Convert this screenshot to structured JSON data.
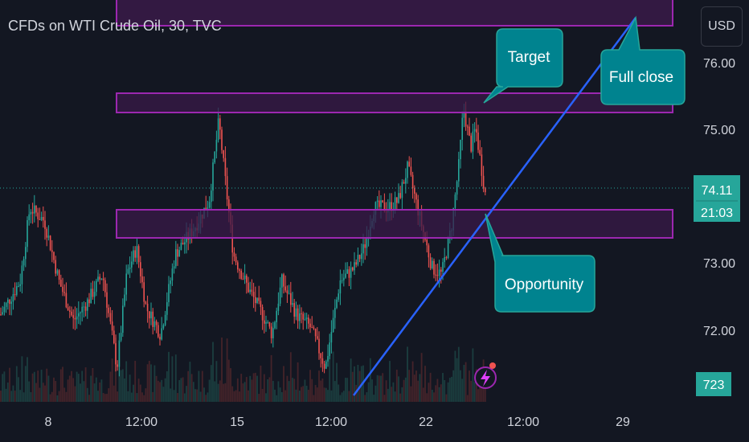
{
  "header": {
    "title": "CFDs on WTI Crude Oil, 30, TVC",
    "currency_button": "USD"
  },
  "chart_data": {
    "type": "candlestick",
    "title": "CFDs on WTI Crude Oil, 30, TVC",
    "y_tick_labels": [
      "76.00",
      "75.00",
      "73.00",
      "72.00"
    ],
    "x_tick_labels": [
      "8",
      "12:00",
      "15",
      "12:00",
      "22",
      "12:00",
      "29"
    ],
    "ylim": [
      71.0,
      76.8
    ],
    "grid": false,
    "current_price": "74.11",
    "countdown": "21:03",
    "volume_badge": "723",
    "price_path": [
      [
        0.0,
        72.3
      ],
      [
        0.04,
        72.8
      ],
      [
        0.06,
        73.9
      ],
      [
        0.09,
        73.7
      ],
      [
        0.12,
        72.8
      ],
      [
        0.15,
        72.2
      ],
      [
        0.18,
        72.5
      ],
      [
        0.21,
        72.9
      ],
      [
        0.24,
        71.5
      ],
      [
        0.26,
        72.9
      ],
      [
        0.28,
        73.3
      ],
      [
        0.3,
        72.4
      ],
      [
        0.33,
        72.0
      ],
      [
        0.36,
        73.2
      ],
      [
        0.4,
        73.6
      ],
      [
        0.43,
        74.0
      ],
      [
        0.45,
        75.2
      ],
      [
        0.48,
        73.2
      ],
      [
        0.51,
        72.7
      ],
      [
        0.54,
        72.3
      ],
      [
        0.56,
        72.0
      ],
      [
        0.58,
        72.8
      ],
      [
        0.61,
        72.3
      ],
      [
        0.64,
        72.1
      ],
      [
        0.67,
        71.5
      ],
      [
        0.7,
        72.8
      ],
      [
        0.73,
        73.0
      ],
      [
        0.75,
        73.3
      ],
      [
        0.77,
        73.9
      ],
      [
        0.8,
        73.9
      ],
      [
        0.82,
        74.0
      ],
      [
        0.84,
        74.5
      ],
      [
        0.87,
        73.6
      ],
      [
        0.89,
        73.0
      ],
      [
        0.91,
        72.9
      ],
      [
        0.93,
        73.6
      ],
      [
        0.945,
        74.5
      ],
      [
        0.955,
        75.4
      ],
      [
        0.97,
        74.8
      ],
      [
        0.98,
        75.1
      ],
      [
        1.0,
        74.11
      ]
    ],
    "annotations": [
      {
        "kind": "callout",
        "text": "Target"
      },
      {
        "kind": "callout",
        "text": "Full close"
      },
      {
        "kind": "callout",
        "text": "Opportunity"
      },
      {
        "kind": "zone",
        "range": [
          76.3,
          76.75
        ]
      },
      {
        "kind": "zone",
        "range": [
          75.25,
          75.55
        ]
      },
      {
        "kind": "zone",
        "range": [
          73.4,
          73.8
        ]
      },
      {
        "kind": "trendline",
        "from": [
          "22 (approx)",
          71.0
        ],
        "to": [
          "29 (approx)",
          76.75
        ]
      }
    ],
    "colors": {
      "background": "#131722",
      "up": "#26a69a",
      "down": "#ef5350",
      "zone_border": "#9c27b0",
      "zone_fill": "#3a1a48",
      "trendline": "#2962ff",
      "callout": "#00838f",
      "text": "#d1d4dc"
    }
  }
}
